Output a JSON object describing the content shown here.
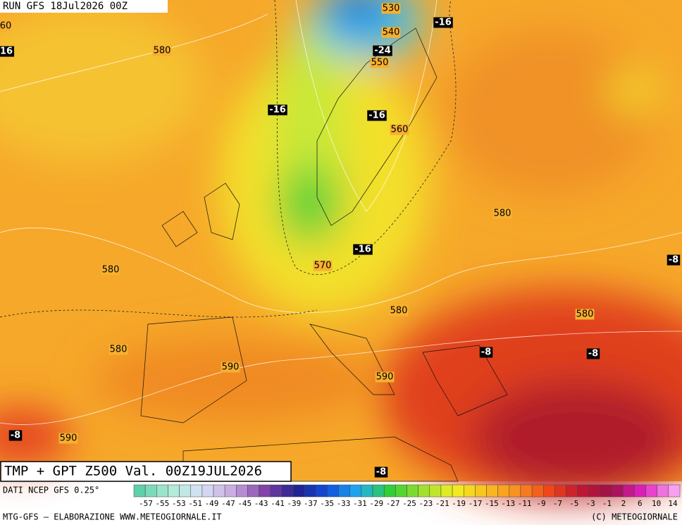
{
  "header": "RUN GFS 18Jul2026 00Z",
  "map": {
    "contour_labels": [
      530,
      540,
      550,
      560,
      570,
      580,
      580,
      580,
      580,
      580,
      580,
      590,
      590,
      590,
      60
    ],
    "temp_labels": [
      -16,
      -24,
      -16,
      -16,
      -16,
      -8,
      -8,
      -8,
      -8,
      -8,
      16
    ]
  },
  "title": "TMP + GPT Z500 Val. 00Z19JUL2026",
  "source": "DATI NCEP GFS 0.25°",
  "colorbar": {
    "labels": [
      -57,
      -55,
      -53,
      -51,
      -49,
      -47,
      -45,
      -43,
      -41,
      -39,
      -37,
      -35,
      -33,
      -31,
      -29,
      -27,
      -25,
      -23,
      -21,
      -19,
      -17,
      -15,
      -13,
      -11,
      -9,
      -7,
      -5,
      -3,
      -1,
      2,
      6,
      10,
      14
    ]
  },
  "footer": {
    "left": "MTG-GFS – ELABORAZIONE WWW.METEOGIORNALE.IT",
    "right": "(C) METEOGIORNALE"
  }
}
